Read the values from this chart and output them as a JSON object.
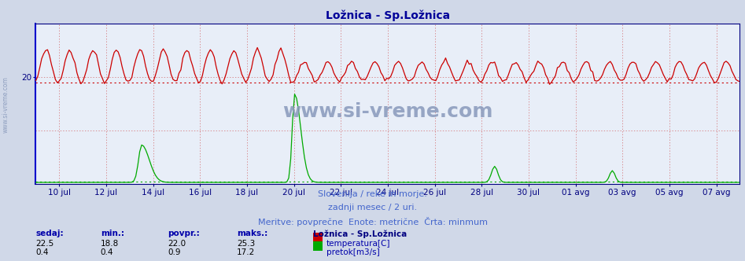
{
  "title": "Ložnica - Sp.Ložnica",
  "title_color": "#000099",
  "bg_color": "#d0d8e8",
  "plot_bg_color": "#e8eef8",
  "grid_color": "#cc4444",
  "axis_color": "#000080",
  "temp_color": "#cc0000",
  "flow_color": "#00aa00",
  "avg_temp_line_y": 19.0,
  "avg_flow_line_y": 0.4,
  "ylim": [
    0,
    30
  ],
  "ytick_val": 20,
  "subtitle1": "Slovenija / reke in morje.",
  "subtitle2": "zadnji mesec / 2 uri.",
  "subtitle3": "Meritve: povprečne  Enote: metrične  Črta: minmum",
  "subtitle_color": "#4466cc",
  "watermark": "www.si-vreme.com",
  "watermark_color": "#8899bb",
  "legend_title": "Ložnica - Sp.Ložnica",
  "legend_title_color": "#000080",
  "legend_color": "#0000aa",
  "table_header_color": "#0000aa",
  "table_val_color": "#000000",
  "sedaj_temp": 22.5,
  "sedaj_flow": 0.4,
  "min_temp": 18.8,
  "min_flow": 0.4,
  "povpr_temp": 22.0,
  "povpr_flow": 0.9,
  "maks_temp": 25.3,
  "maks_flow": 17.2,
  "x_tick_labels": [
    "10 jul",
    "12 jul",
    "14 jul",
    "16 jul",
    "18 jul",
    "20 jul",
    "22 jul",
    "24 jul",
    "26 jul",
    "28 jul",
    "30 jul",
    "01 avg",
    "03 avg",
    "05 avg",
    "07 avg"
  ],
  "x_tick_positions": [
    1,
    3,
    5,
    7,
    9,
    11,
    13,
    15,
    17,
    19,
    21,
    23,
    25,
    27,
    29
  ],
  "left_label": "www.si-vreme.com",
  "left_label_color": "#8899bb"
}
